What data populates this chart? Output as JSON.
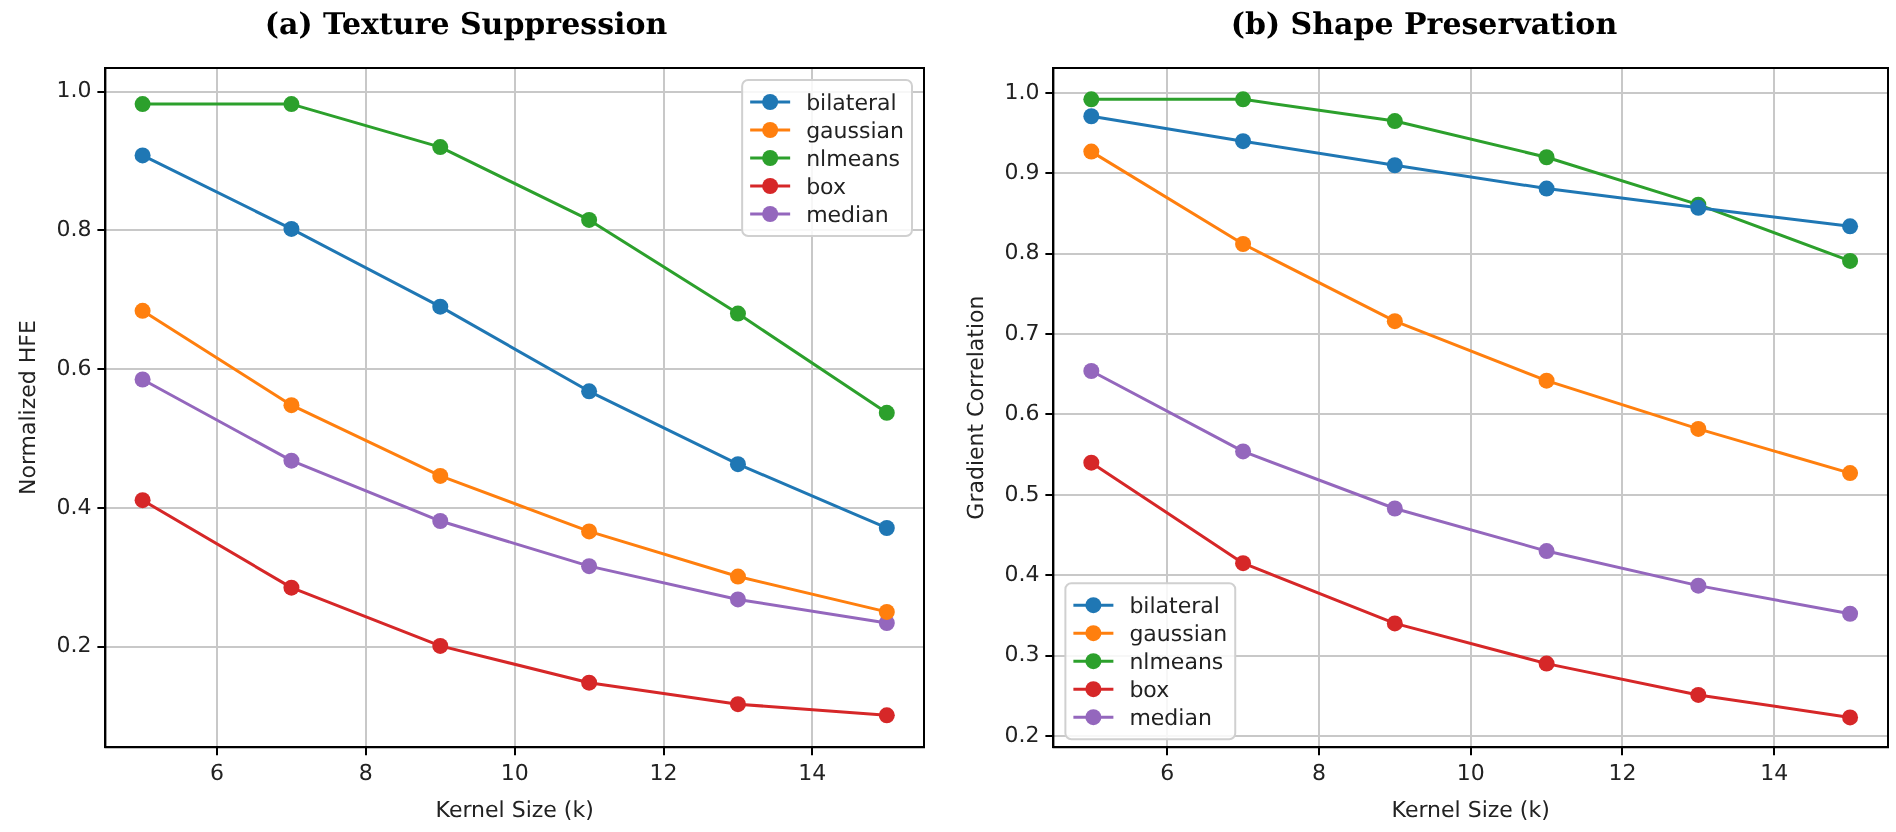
{
  "chart_data": [
    {
      "type": "line",
      "title": "(a) Texture Suppression",
      "xlabel": "Kernel Size (k)",
      "ylabel": "Normalized HFE",
      "x": [
        5,
        7,
        9,
        11,
        13,
        15
      ],
      "series": [
        {
          "name": "bilateral",
          "color": "#1f77b4",
          "values": [
            0.908,
            0.802,
            0.69,
            0.568,
            0.463,
            0.371
          ]
        },
        {
          "name": "gaussian",
          "color": "#ff7f0e",
          "values": [
            0.684,
            0.548,
            0.446,
            0.366,
            0.301,
            0.25
          ]
        },
        {
          "name": "nlmeans",
          "color": "#2ca02c",
          "values": [
            0.982,
            0.982,
            0.92,
            0.815,
            0.68,
            0.537
          ]
        },
        {
          "name": "box",
          "color": "#d62728",
          "values": [
            0.411,
            0.285,
            0.201,
            0.148,
            0.117,
            0.101
          ]
        },
        {
          "name": "median",
          "color": "#9467bd",
          "values": [
            0.585,
            0.468,
            0.381,
            0.316,
            0.268,
            0.234
          ]
        }
      ],
      "xlim": [
        4.5,
        15.5
      ],
      "xticks": [
        6,
        8,
        10,
        12,
        14
      ],
      "ylim": [
        0.055,
        1.034
      ],
      "yticks": [
        {
          "value": 0.2,
          "label": "0.2"
        },
        {
          "value": 0.4,
          "label": "0.4"
        },
        {
          "value": 0.6,
          "label": "0.6"
        },
        {
          "value": 0.8,
          "label": "0.8"
        },
        {
          "value": 1.0,
          "label": "1.0"
        }
      ],
      "grid": true,
      "legend": "top right",
      "marker": "circle",
      "line_style": "solid"
    },
    {
      "type": "line",
      "title": "(b) Shape Preservation",
      "xlabel": "Kernel Size (k)",
      "ylabel": "Gradient Correlation",
      "x": [
        5,
        7,
        9,
        11,
        13,
        15
      ],
      "series": [
        {
          "name": "bilateral",
          "color": "#1f77b4",
          "values": [
            0.971,
            0.94,
            0.91,
            0.881,
            0.857,
            0.834
          ]
        },
        {
          "name": "gaussian",
          "color": "#ff7f0e",
          "values": [
            0.927,
            0.812,
            0.716,
            0.642,
            0.582,
            0.527
          ]
        },
        {
          "name": "nlmeans",
          "color": "#2ca02c",
          "values": [
            0.992,
            0.992,
            0.965,
            0.92,
            0.861,
            0.791
          ]
        },
        {
          "name": "box",
          "color": "#d62728",
          "values": [
            0.54,
            0.415,
            0.34,
            0.29,
            0.251,
            0.223
          ]
        },
        {
          "name": "median",
          "color": "#9467bd",
          "values": [
            0.654,
            0.554,
            0.483,
            0.43,
            0.387,
            0.352
          ]
        }
      ],
      "xlim": [
        4.5,
        15.5
      ],
      "xticks": [
        6,
        8,
        10,
        12,
        14
      ],
      "ylim": [
        0.186,
        1.031
      ],
      "yticks": [
        {
          "value": 0.2,
          "label": "0.2"
        },
        {
          "value": 0.3,
          "label": "0.3"
        },
        {
          "value": 0.4,
          "label": "0.4"
        },
        {
          "value": 0.5,
          "label": "0.5"
        },
        {
          "value": 0.6,
          "label": "0.6"
        },
        {
          "value": 0.7,
          "label": "0.7"
        },
        {
          "value": 0.8,
          "label": "0.8"
        },
        {
          "value": 0.9,
          "label": "0.9"
        },
        {
          "value": 1.0,
          "label": "1.0"
        }
      ],
      "grid": true,
      "legend": "bottom left",
      "marker": "circle",
      "line_style": "solid"
    }
  ]
}
